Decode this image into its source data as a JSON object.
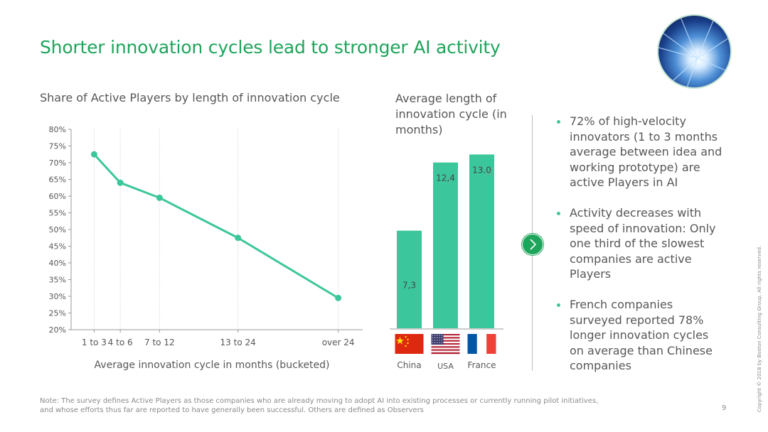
{
  "slide": {
    "title": "Shorter innovation cycles lead to stronger AI activity",
    "page_number": "9",
    "copyright": "Copyright © 2018 by Boston Consulting Group. All rights reserved.",
    "note_line1": "Note: The survey defines Active Players as those companies who are already moving to adopt AI into existing processes or currently running pilot initiatives,",
    "note_line2": "and whose efforts thus far are reported to have generally been successful. Others are defined as Observers"
  },
  "bullets": [
    "72% of high-velocity innovators (1 to 3 months average between idea and working prototype) are active Players in AI",
    "Activity decreases with speed of innovation: Only one third of the slowest companies are active Players",
    "French companies surveyed reported 78% longer innovation cycles on average than Chinese companies"
  ],
  "colors": {
    "accent": "#1fa45b",
    "series": "#3cc69b",
    "text": "#575757"
  },
  "icons": {
    "arrow": "chevron-right-icon",
    "photo": "tunnel-photo"
  },
  "chart_data": [
    {
      "type": "line",
      "title": "Share of Active Players by length of innovation cycle",
      "xlabel": "Average innovation cycle in months (bucketed)",
      "ylabel": "",
      "categories": [
        "1 to 3",
        "4 to 6",
        "7 to 12",
        "13 to 24",
        "over 24"
      ],
      "x": [
        2,
        5,
        9.5,
        18.5,
        30
      ],
      "values": [
        72.5,
        64,
        59.5,
        47.5,
        29.5
      ],
      "ylim": [
        20,
        80
      ],
      "yticks": [
        "20%",
        "25%",
        "30%",
        "35%",
        "40%",
        "45%",
        "50%",
        "55%",
        "60%",
        "65%",
        "70%",
        "75%",
        "80%"
      ],
      "grid": "vertical dotted at categories"
    },
    {
      "type": "bar",
      "title": "Average length of innovation cycle (in months)",
      "categories": [
        "China",
        "USA",
        "France"
      ],
      "values": [
        7.3,
        12.4,
        13.0
      ],
      "labels": [
        "7,3",
        "12,4",
        "13.0"
      ],
      "flags": [
        "china-flag-icon",
        "usa-flag-icon",
        "france-flag-icon"
      ],
      "ylim": [
        0,
        13.5
      ]
    }
  ]
}
